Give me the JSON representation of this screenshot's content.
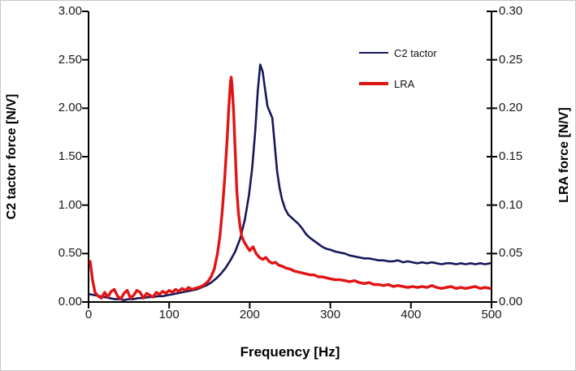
{
  "figure": {
    "background": "#ffffff",
    "border_color": "#c9c9c9",
    "axis_color": "#000000"
  },
  "chart_data": {
    "type": "line",
    "title": "",
    "xlabel": "Frequency [Hz]",
    "ylabel_left": "C2 tactor force [N/V]",
    "ylabel_right": "LRA force [N/V]",
    "xlim": [
      0,
      500
    ],
    "xtick_labels": [
      "0",
      "100",
      "200",
      "300",
      "400",
      "500"
    ],
    "ylim_left": [
      0,
      3.0
    ],
    "ytick_labels_left": [
      "0.00",
      "0.50",
      "1.00",
      "1.50",
      "2.00",
      "2.50",
      "3.00"
    ],
    "ylim_right": [
      0,
      0.3
    ],
    "ytick_labels_right": [
      "0.00",
      "0.05",
      "0.10",
      "0.15",
      "0.20",
      "0.25",
      "0.30"
    ],
    "grid": false,
    "legend_position": "upper-right-inside",
    "series": [
      {
        "name": "C2 tactor",
        "color": "#17175c",
        "axis": "left",
        "peak": {
          "x": 213,
          "y": 2.45
        },
        "points": [
          [
            2,
            0.08
          ],
          [
            8,
            0.07
          ],
          [
            14,
            0.06
          ],
          [
            20,
            0.05
          ],
          [
            26,
            0.04
          ],
          [
            32,
            0.03
          ],
          [
            38,
            0.03
          ],
          [
            44,
            0.02
          ],
          [
            50,
            0.03
          ],
          [
            56,
            0.03
          ],
          [
            62,
            0.04
          ],
          [
            68,
            0.04
          ],
          [
            74,
            0.05
          ],
          [
            80,
            0.05
          ],
          [
            86,
            0.06
          ],
          [
            92,
            0.06
          ],
          [
            98,
            0.07
          ],
          [
            104,
            0.08
          ],
          [
            110,
            0.09
          ],
          [
            116,
            0.1
          ],
          [
            122,
            0.11
          ],
          [
            128,
            0.12
          ],
          [
            134,
            0.13
          ],
          [
            140,
            0.15
          ],
          [
            146,
            0.17
          ],
          [
            152,
            0.2
          ],
          [
            158,
            0.24
          ],
          [
            164,
            0.29
          ],
          [
            170,
            0.35
          ],
          [
            176,
            0.43
          ],
          [
            182,
            0.52
          ],
          [
            188,
            0.65
          ],
          [
            194,
            0.85
          ],
          [
            199,
            1.1
          ],
          [
            203,
            1.38
          ],
          [
            207,
            1.78
          ],
          [
            210,
            2.18
          ],
          [
            213,
            2.45
          ],
          [
            216,
            2.38
          ],
          [
            219,
            2.2
          ],
          [
            222,
            2.02
          ],
          [
            225,
            1.96
          ],
          [
            228,
            1.9
          ],
          [
            231,
            1.62
          ],
          [
            234,
            1.35
          ],
          [
            237,
            1.18
          ],
          [
            240,
            1.06
          ],
          [
            244,
            0.96
          ],
          [
            248,
            0.9
          ],
          [
            252,
            0.87
          ],
          [
            256,
            0.84
          ],
          [
            260,
            0.81
          ],
          [
            265,
            0.76
          ],
          [
            270,
            0.7
          ],
          [
            275,
            0.66
          ],
          [
            280,
            0.63
          ],
          [
            285,
            0.6
          ],
          [
            290,
            0.57
          ],
          [
            295,
            0.55
          ],
          [
            300,
            0.54
          ],
          [
            306,
            0.52
          ],
          [
            312,
            0.51
          ],
          [
            318,
            0.5
          ],
          [
            324,
            0.48
          ],
          [
            330,
            0.47
          ],
          [
            336,
            0.46
          ],
          [
            342,
            0.45
          ],
          [
            348,
            0.45
          ],
          [
            354,
            0.44
          ],
          [
            360,
            0.43
          ],
          [
            366,
            0.43
          ],
          [
            372,
            0.42
          ],
          [
            378,
            0.42
          ],
          [
            384,
            0.43
          ],
          [
            390,
            0.41
          ],
          [
            396,
            0.42
          ],
          [
            402,
            0.41
          ],
          [
            408,
            0.4
          ],
          [
            414,
            0.41
          ],
          [
            420,
            0.4
          ],
          [
            426,
            0.41
          ],
          [
            432,
            0.4
          ],
          [
            438,
            0.39
          ],
          [
            444,
            0.4
          ],
          [
            450,
            0.4
          ],
          [
            456,
            0.39
          ],
          [
            462,
            0.4
          ],
          [
            468,
            0.39
          ],
          [
            474,
            0.4
          ],
          [
            480,
            0.39
          ],
          [
            486,
            0.4
          ],
          [
            492,
            0.39
          ],
          [
            498,
            0.4
          ]
        ]
      },
      {
        "name": "LRA",
        "color": "#e11414",
        "axis": "right",
        "peak": {
          "x": 177,
          "y": 0.232
        },
        "points": [
          [
            2,
            0.042
          ],
          [
            5,
            0.022
          ],
          [
            8,
            0.01
          ],
          [
            12,
            0.006
          ],
          [
            16,
            0.004
          ],
          [
            20,
            0.01
          ],
          [
            24,
            0.005
          ],
          [
            28,
            0.011
          ],
          [
            32,
            0.013
          ],
          [
            36,
            0.006
          ],
          [
            40,
            0.003
          ],
          [
            44,
            0.009
          ],
          [
            48,
            0.012
          ],
          [
            52,
            0.004
          ],
          [
            56,
            0.007
          ],
          [
            60,
            0.012
          ],
          [
            64,
            0.01
          ],
          [
            68,
            0.004
          ],
          [
            72,
            0.009
          ],
          [
            76,
            0.007
          ],
          [
            80,
            0.005
          ],
          [
            84,
            0.01
          ],
          [
            88,
            0.008
          ],
          [
            92,
            0.011
          ],
          [
            96,
            0.009
          ],
          [
            100,
            0.012
          ],
          [
            104,
            0.01
          ],
          [
            108,
            0.013
          ],
          [
            112,
            0.011
          ],
          [
            116,
            0.014
          ],
          [
            120,
            0.012
          ],
          [
            124,
            0.015
          ],
          [
            128,
            0.013
          ],
          [
            132,
            0.014
          ],
          [
            136,
            0.015
          ],
          [
            140,
            0.016
          ],
          [
            144,
            0.018
          ],
          [
            148,
            0.021
          ],
          [
            152,
            0.026
          ],
          [
            156,
            0.034
          ],
          [
            160,
            0.05
          ],
          [
            163,
            0.068
          ],
          [
            166,
            0.095
          ],
          [
            169,
            0.128
          ],
          [
            172,
            0.168
          ],
          [
            174,
            0.2
          ],
          [
            176,
            0.226
          ],
          [
            177,
            0.232
          ],
          [
            178,
            0.224
          ],
          [
            180,
            0.196
          ],
          [
            182,
            0.156
          ],
          [
            184,
            0.115
          ],
          [
            186,
            0.092
          ],
          [
            188,
            0.078
          ],
          [
            190,
            0.068
          ],
          [
            193,
            0.062
          ],
          [
            196,
            0.058
          ],
          [
            200,
            0.053
          ],
          [
            204,
            0.057
          ],
          [
            208,
            0.05
          ],
          [
            212,
            0.046
          ],
          [
            216,
            0.044
          ],
          [
            220,
            0.046
          ],
          [
            224,
            0.042
          ],
          [
            228,
            0.04
          ],
          [
            232,
            0.041
          ],
          [
            236,
            0.038
          ],
          [
            240,
            0.037
          ],
          [
            245,
            0.035
          ],
          [
            250,
            0.034
          ],
          [
            255,
            0.032
          ],
          [
            260,
            0.031
          ],
          [
            265,
            0.03
          ],
          [
            270,
            0.029
          ],
          [
            275,
            0.028
          ],
          [
            280,
            0.028
          ],
          [
            285,
            0.026
          ],
          [
            290,
            0.026
          ],
          [
            295,
            0.025
          ],
          [
            300,
            0.024
          ],
          [
            306,
            0.023
          ],
          [
            312,
            0.023
          ],
          [
            318,
            0.022
          ],
          [
            324,
            0.021
          ],
          [
            330,
            0.022
          ],
          [
            336,
            0.02
          ],
          [
            342,
            0.019
          ],
          [
            348,
            0.02
          ],
          [
            354,
            0.018
          ],
          [
            360,
            0.018
          ],
          [
            366,
            0.017
          ],
          [
            372,
            0.018
          ],
          [
            378,
            0.016
          ],
          [
            384,
            0.017
          ],
          [
            390,
            0.016
          ],
          [
            396,
            0.015
          ],
          [
            402,
            0.016
          ],
          [
            408,
            0.015
          ],
          [
            414,
            0.016
          ],
          [
            420,
            0.015
          ],
          [
            426,
            0.017
          ],
          [
            432,
            0.015
          ],
          [
            438,
            0.014
          ],
          [
            444,
            0.015
          ],
          [
            450,
            0.016
          ],
          [
            456,
            0.014
          ],
          [
            462,
            0.015
          ],
          [
            468,
            0.014
          ],
          [
            474,
            0.015
          ],
          [
            480,
            0.016
          ],
          [
            486,
            0.014
          ],
          [
            492,
            0.015
          ],
          [
            498,
            0.014
          ]
        ]
      }
    ]
  }
}
